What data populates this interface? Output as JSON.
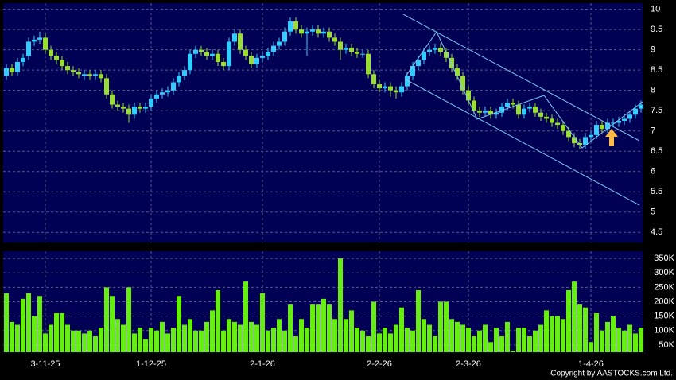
{
  "chart_data": {
    "type": "candlestick",
    "x": [
      null,
      null,
      null,
      null,
      null,
      null,
      null,
      "3-11-25",
      null,
      null,
      null,
      null,
      null,
      null,
      null,
      null,
      null,
      null,
      null,
      null,
      null,
      null,
      null,
      null,
      null,
      null,
      "1-12-25",
      null,
      null,
      null,
      null,
      null,
      null,
      null,
      null,
      null,
      null,
      null,
      null,
      null,
      null,
      null,
      null,
      null,
      null,
      null,
      "2-1-26",
      null,
      null,
      null,
      null,
      null,
      null,
      null,
      null,
      null,
      null,
      null,
      null,
      null,
      null,
      null,
      null,
      null,
      null,
      null,
      null,
      "2-2-26",
      null,
      null,
      null,
      null,
      null,
      null,
      null,
      null,
      null,
      null,
      null,
      null,
      null,
      null,
      null,
      "2-3-26",
      null,
      null,
      null,
      null,
      null,
      null,
      null,
      null,
      null,
      null,
      null,
      null,
      null,
      null,
      null,
      null,
      null,
      null,
      null,
      null,
      null,
      "1-4-26",
      null,
      null,
      null,
      null,
      null,
      null,
      null,
      null,
      null
    ],
    "open": [
      8.35,
      8.55,
      8.45,
      8.7,
      8.85,
      9.2,
      9.25,
      9.3,
      9.0,
      8.85,
      8.75,
      8.6,
      8.5,
      8.45,
      8.35,
      8.4,
      8.35,
      8.4,
      8.3,
      7.9,
      7.65,
      7.6,
      7.55,
      7.4,
      7.6,
      7.55,
      7.6,
      7.8,
      7.9,
      7.95,
      8.0,
      8.2,
      8.35,
      8.5,
      8.9,
      9.0,
      8.95,
      8.85,
      8.9,
      8.7,
      8.6,
      9.2,
      9.4,
      9.0,
      8.85,
      8.65,
      8.8,
      8.85,
      8.95,
      9.1,
      9.2,
      9.45,
      9.7,
      9.5,
      9.4,
      9.45,
      9.5,
      9.4,
      9.45,
      9.3,
      9.2,
      9.0,
      9.05,
      8.95,
      8.9,
      8.9,
      8.4,
      8.15,
      8.05,
      8.1,
      8.0,
      7.95,
      8.1,
      8.35,
      8.6,
      8.75,
      8.95,
      9.0,
      9.05,
      8.95,
      8.8,
      8.55,
      8.35,
      8.0,
      7.75,
      7.5,
      7.45,
      7.5,
      7.4,
      7.45,
      7.6,
      7.7,
      7.65,
      7.4,
      7.55,
      7.6,
      7.45,
      7.35,
      7.3,
      7.2,
      7.15,
      7.0,
      6.85,
      6.7,
      6.65,
      6.85,
      6.9,
      7.15,
      7.05,
      7.2,
      7.2,
      7.25,
      7.3,
      7.4,
      7.55
    ],
    "high": [
      8.65,
      8.65,
      8.8,
      8.9,
      9.3,
      9.35,
      9.45,
      9.4,
      9.1,
      8.95,
      8.85,
      8.7,
      8.6,
      8.55,
      8.5,
      8.5,
      8.5,
      8.5,
      8.4,
      8.0,
      7.75,
      7.7,
      7.65,
      7.7,
      7.7,
      7.7,
      7.9,
      8.0,
      8.05,
      8.1,
      8.3,
      8.45,
      8.6,
      9.0,
      9.1,
      9.1,
      9.05,
      9.0,
      9.0,
      8.8,
      9.3,
      9.5,
      9.5,
      9.1,
      8.95,
      8.9,
      8.95,
      9.05,
      9.2,
      9.3,
      9.55,
      9.8,
      9.8,
      9.6,
      9.55,
      9.6,
      9.6,
      9.55,
      9.55,
      9.4,
      9.3,
      9.15,
      9.15,
      9.05,
      9.0,
      9.0,
      8.5,
      8.25,
      8.2,
      8.2,
      8.1,
      8.2,
      8.45,
      8.7,
      8.85,
      9.05,
      9.1,
      9.15,
      9.15,
      9.05,
      8.9,
      8.65,
      8.45,
      8.1,
      7.85,
      7.6,
      7.6,
      7.6,
      7.55,
      7.7,
      7.8,
      7.8,
      7.75,
      7.65,
      7.7,
      7.7,
      7.55,
      7.45,
      7.4,
      7.3,
      7.25,
      7.1,
      6.95,
      6.8,
      6.95,
      7.0,
      7.25,
      7.25,
      7.3,
      7.3,
      7.35,
      7.4,
      7.5,
      7.65,
      7.75
    ],
    "low": [
      8.25,
      8.35,
      8.35,
      8.6,
      8.75,
      9.1,
      9.15,
      8.9,
      8.75,
      8.65,
      8.5,
      8.4,
      8.35,
      8.3,
      8.25,
      8.25,
      8.25,
      8.2,
      7.8,
      7.55,
      7.5,
      7.45,
      7.2,
      7.3,
      7.45,
      7.45,
      7.5,
      7.7,
      7.8,
      7.85,
      7.9,
      8.1,
      8.25,
      8.4,
      8.8,
      8.85,
      8.75,
      8.75,
      8.6,
      8.5,
      8.5,
      9.1,
      8.9,
      8.75,
      8.55,
      8.55,
      8.7,
      8.75,
      8.85,
      9.0,
      9.1,
      9.35,
      9.4,
      9.3,
      8.85,
      9.35,
      9.3,
      9.3,
      9.2,
      9.1,
      8.75,
      8.9,
      8.85,
      8.8,
      8.8,
      8.3,
      8.05,
      7.95,
      7.95,
      7.85,
      7.8,
      7.85,
      8.0,
      8.25,
      8.5,
      8.65,
      8.85,
      8.9,
      8.85,
      8.7,
      8.45,
      8.25,
      7.9,
      7.65,
      7.4,
      7.35,
      7.35,
      7.3,
      7.3,
      7.35,
      7.5,
      7.55,
      7.3,
      7.3,
      7.45,
      7.35,
      7.25,
      7.2,
      7.1,
      7.05,
      6.9,
      6.75,
      6.6,
      6.55,
      6.55,
      6.75,
      6.8,
      6.95,
      6.95,
      7.1,
      7.1,
      7.15,
      7.2,
      7.3,
      7.45
    ],
    "close": [
      8.55,
      8.45,
      8.7,
      8.8,
      9.2,
      9.25,
      9.3,
      9.0,
      8.85,
      8.75,
      8.6,
      8.5,
      8.45,
      8.4,
      8.4,
      8.35,
      8.4,
      8.3,
      7.9,
      7.65,
      7.6,
      7.55,
      7.4,
      7.6,
      7.55,
      7.6,
      7.8,
      7.9,
      7.95,
      8.0,
      8.2,
      8.35,
      8.5,
      8.9,
      9.0,
      8.95,
      8.85,
      8.9,
      8.7,
      8.6,
      9.2,
      9.4,
      9.0,
      8.85,
      8.65,
      8.8,
      8.85,
      8.95,
      9.1,
      9.2,
      9.45,
      9.7,
      9.5,
      9.4,
      9.45,
      9.5,
      9.4,
      9.45,
      9.3,
      9.2,
      9.0,
      9.05,
      8.95,
      8.9,
      8.9,
      8.4,
      8.15,
      8.05,
      8.1,
      8.0,
      7.95,
      8.1,
      8.35,
      8.6,
      8.75,
      8.95,
      9.0,
      9.05,
      8.95,
      8.8,
      8.55,
      8.35,
      8.0,
      7.75,
      7.5,
      7.45,
      7.5,
      7.4,
      7.45,
      7.6,
      7.7,
      7.65,
      7.4,
      7.55,
      7.6,
      7.45,
      7.35,
      7.3,
      7.2,
      7.15,
      7.0,
      6.85,
      6.7,
      6.65,
      6.85,
      6.9,
      7.15,
      7.05,
      7.2,
      7.2,
      7.25,
      7.3,
      7.4,
      7.55,
      7.65
    ],
    "volume": [
      230000,
      130000,
      120000,
      210000,
      230000,
      150000,
      220000,
      90000,
      120000,
      160000,
      160000,
      120000,
      100000,
      100000,
      90000,
      100000,
      80000,
      110000,
      250000,
      220000,
      140000,
      120000,
      250000,
      90000,
      110000,
      70000,
      110000,
      100000,
      130000,
      90000,
      110000,
      220000,
      120000,
      140000,
      100000,
      100000,
      130000,
      170000,
      240000,
      100000,
      140000,
      130000,
      120000,
      270000,
      130000,
      120000,
      230000,
      100000,
      110000,
      140000,
      100000,
      190000,
      80000,
      140000,
      110000,
      190000,
      190000,
      210000,
      190000,
      140000,
      350000,
      140000,
      170000,
      110000,
      100000,
      80000,
      200000,
      90000,
      110000,
      90000,
      120000,
      180000,
      110000,
      100000,
      240000,
      140000,
      120000,
      80000,
      200000,
      200000,
      140000,
      130000,
      120000,
      110000,
      80000,
      100000,
      120000,
      60000,
      110000,
      80000,
      130000,
      30000,
      110000,
      110000,
      80000,
      100000,
      120000,
      170000,
      150000,
      150000,
      140000,
      240000,
      270000,
      190000,
      180000,
      60000,
      160000,
      100000,
      130000,
      150000,
      110000,
      100000,
      120000,
      90000,
      110000
    ],
    "up_color": "#33ccff",
    "down_color": "#99dd33",
    "volume_color": "#66ee11",
    "ylim": [
      4.25,
      10.15
    ],
    "yticks": [
      4.5,
      5,
      5.5,
      6,
      6.5,
      7,
      7.5,
      8,
      8.5,
      9,
      9.5,
      10
    ],
    "y2lim": [
      25000,
      375000
    ],
    "y2ticks": [
      {
        "value": 50000,
        "label": "50K"
      },
      {
        "value": 100000,
        "label": "100K"
      },
      {
        "value": 150000,
        "label": "150K"
      },
      {
        "value": 200000,
        "label": "200K"
      },
      {
        "value": 250000,
        "label": "250K"
      },
      {
        "value": 300000,
        "label": "300K"
      },
      {
        "value": 350000,
        "label": "350K"
      }
    ],
    "grid": true
  },
  "copyright": "Copyright by AASTOCKS.com Ltd."
}
